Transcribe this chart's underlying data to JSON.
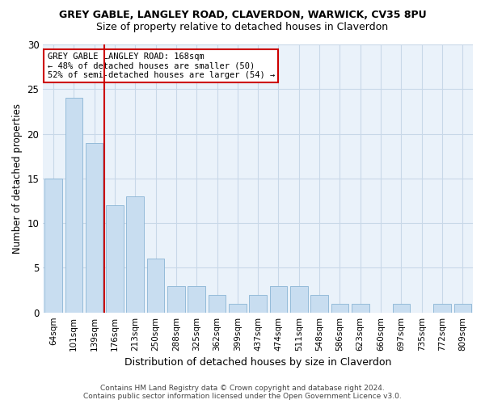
{
  "title": "GREY GABLE, LANGLEY ROAD, CLAVERDON, WARWICK, CV35 8PU",
  "subtitle": "Size of property relative to detached houses in Claverdon",
  "xlabel": "Distribution of detached houses by size in Claverdon",
  "ylabel": "Number of detached properties",
  "categories": [
    "64sqm",
    "101sqm",
    "139sqm",
    "176sqm",
    "213sqm",
    "250sqm",
    "288sqm",
    "325sqm",
    "362sqm",
    "399sqm",
    "437sqm",
    "474sqm",
    "511sqm",
    "548sqm",
    "586sqm",
    "623sqm",
    "660sqm",
    "697sqm",
    "735sqm",
    "772sqm",
    "809sqm"
  ],
  "values": [
    15,
    24,
    19,
    12,
    13,
    6,
    3,
    3,
    2,
    1,
    2,
    3,
    3,
    2,
    1,
    1,
    0,
    1,
    0,
    1,
    1
  ],
  "bar_color": "#c8ddf0",
  "bar_edge_color": "#8ab4d4",
  "vline_x": 2.5,
  "vline_color": "#cc0000",
  "ylim": [
    0,
    30
  ],
  "yticks": [
    0,
    5,
    10,
    15,
    20,
    25,
    30
  ],
  "annotation_title": "GREY GABLE LANGLEY ROAD: 168sqm",
  "annotation_line1": "← 48% of detached houses are smaller (50)",
  "annotation_line2": "52% of semi-detached houses are larger (54) →",
  "annotation_box_color": "#ffffff",
  "annotation_box_edge": "#cc0000",
  "grid_color": "#c8d8e8",
  "bg_color": "#eaf2fa",
  "footer1": "Contains HM Land Registry data © Crown copyright and database right 2024.",
  "footer2": "Contains public sector information licensed under the Open Government Licence v3.0."
}
